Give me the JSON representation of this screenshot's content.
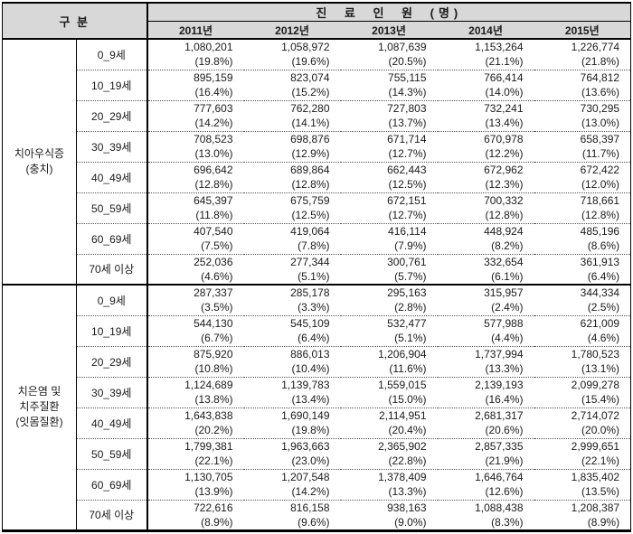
{
  "colors": {
    "header_background": "#d8d8d8",
    "border": "#000000",
    "text": "#1a1a1a"
  },
  "chart_data": {
    "type": "table",
    "category_header": "구  분",
    "main_header": "진 료 인 원 (명)",
    "columns": [
      "2011년",
      "2012년",
      "2013년",
      "2014년",
      "2015년"
    ],
    "sections": [
      {
        "group_lines": [
          "치아우식증",
          "(충치)"
        ],
        "rows": [
          {
            "age": "0_9세",
            "cells": [
              {
                "count": "1,080,201",
                "share": "(19.8%)"
              },
              {
                "count": "1,058,972",
                "share": "(19.6%)"
              },
              {
                "count": "1,087,639",
                "share": "(20.5%)"
              },
              {
                "count": "1,153,264",
                "share": "(21.1%)"
              },
              {
                "count": "1,226,774",
                "share": "(21.8%)"
              }
            ]
          },
          {
            "age": "10_19세",
            "cells": [
              {
                "count": "895,159",
                "share": "(16.4%)"
              },
              {
                "count": "823,074",
                "share": "(15.2%)"
              },
              {
                "count": "755,115",
                "share": "(14.3%)"
              },
              {
                "count": "766,414",
                "share": "(14.0%)"
              },
              {
                "count": "764,812",
                "share": "(13.6%)"
              }
            ]
          },
          {
            "age": "20_29세",
            "cells": [
              {
                "count": "777,603",
                "share": "(14.2%)"
              },
              {
                "count": "762,280",
                "share": "(14.1%)"
              },
              {
                "count": "727,803",
                "share": "(13.7%)"
              },
              {
                "count": "732,241",
                "share": "(13.4%)"
              },
              {
                "count": "730,295",
                "share": "(13.0%)"
              }
            ]
          },
          {
            "age": "30_39세",
            "cells": [
              {
                "count": "708,523",
                "share": "(13.0%)"
              },
              {
                "count": "698,876",
                "share": "(12.9%)"
              },
              {
                "count": "671,714",
                "share": "(12.7%)"
              },
              {
                "count": "670,978",
                "share": "(12.2%)"
              },
              {
                "count": "658,397",
                "share": "(11.7%)"
              }
            ]
          },
          {
            "age": "40_49세",
            "cells": [
              {
                "count": "696,642",
                "share": "(12.8%)"
              },
              {
                "count": "689,864",
                "share": "(12.8%)"
              },
              {
                "count": "662,443",
                "share": "(12.5%)"
              },
              {
                "count": "672,962",
                "share": "(12.3%)"
              },
              {
                "count": "672,422",
                "share": "(12.0%)"
              }
            ]
          },
          {
            "age": "50_59세",
            "cells": [
              {
                "count": "645,397",
                "share": "(11.8%)"
              },
              {
                "count": "675,759",
                "share": "(12.5%)"
              },
              {
                "count": "672,151",
                "share": "(12.7%)"
              },
              {
                "count": "700,332",
                "share": "(12.8%)"
              },
              {
                "count": "718,661",
                "share": "(12.8%)"
              }
            ]
          },
          {
            "age": "60_69세",
            "cells": [
              {
                "count": "407,540",
                "share": "(7.5%)"
              },
              {
                "count": "419,064",
                "share": "(7.8%)"
              },
              {
                "count": "416,114",
                "share": "(7.9%)"
              },
              {
                "count": "448,924",
                "share": "(8.2%)"
              },
              {
                "count": "485,196",
                "share": "(8.6%)"
              }
            ]
          },
          {
            "age": "70세 이상",
            "cells": [
              {
                "count": "252,036",
                "share": "(4.6%)"
              },
              {
                "count": "277,344",
                "share": "(5.1%)"
              },
              {
                "count": "300,761",
                "share": "(5.7%)"
              },
              {
                "count": "332,654",
                "share": "(6.1%)"
              },
              {
                "count": "361,913",
                "share": "(6.4%)"
              }
            ]
          }
        ]
      },
      {
        "group_lines": [
          "치은염 및",
          "치주질환",
          "(잇몸질환)"
        ],
        "rows": [
          {
            "age": "0_9세",
            "cells": [
              {
                "count": "287,337",
                "share": "(3.5%)"
              },
              {
                "count": "285,178",
                "share": "(3.3%)"
              },
              {
                "count": "295,163",
                "share": "(2.8%)"
              },
              {
                "count": "315,957",
                "share": "(2.4%)"
              },
              {
                "count": "344,334",
                "share": "(2.5%)"
              }
            ]
          },
          {
            "age": "10_19세",
            "cells": [
              {
                "count": "544,130",
                "share": "(6.7%)"
              },
              {
                "count": "545,109",
                "share": "(6.4%)"
              },
              {
                "count": "532,477",
                "share": "(5.1%)"
              },
              {
                "count": "577,988",
                "share": "(4.4%)"
              },
              {
                "count": "621,009",
                "share": "(4.6%)"
              }
            ]
          },
          {
            "age": "20_29세",
            "cells": [
              {
                "count": "875,920",
                "share": "(10.8%)"
              },
              {
                "count": "886,013",
                "share": "(10.4%)"
              },
              {
                "count": "1,206,904",
                "share": "(11.6%)"
              },
              {
                "count": "1,737,994",
                "share": "(13.3%)"
              },
              {
                "count": "1,780,523",
                "share": "(13.1%)"
              }
            ]
          },
          {
            "age": "30_39세",
            "cells": [
              {
                "count": "1,124,689",
                "share": "(13.8%)"
              },
              {
                "count": "1,139,783",
                "share": "(13.4%)"
              },
              {
                "count": "1,559,015",
                "share": "(15.0%)"
              },
              {
                "count": "2,139,193",
                "share": "(16.4%)"
              },
              {
                "count": "2,099,278",
                "share": "(15.4%)"
              }
            ]
          },
          {
            "age": "40_49세",
            "cells": [
              {
                "count": "1,643,838",
                "share": "(20.2%)"
              },
              {
                "count": "1,690,149",
                "share": "(19.8%)"
              },
              {
                "count": "2,114,951",
                "share": "(20.4%)"
              },
              {
                "count": "2,681,317",
                "share": "(20.6%)"
              },
              {
                "count": "2,714,072",
                "share": "(20.0%)"
              }
            ]
          },
          {
            "age": "50_59세",
            "cells": [
              {
                "count": "1,799,381",
                "share": "(22.1%)"
              },
              {
                "count": "1,963,663",
                "share": "(23.0%)"
              },
              {
                "count": "2,365,902",
                "share": "(22.8%)"
              },
              {
                "count": "2,857,335",
                "share": "(21.9%)"
              },
              {
                "count": "2,999,651",
                "share": "(22.1%)"
              }
            ]
          },
          {
            "age": "60_69세",
            "cells": [
              {
                "count": "1,130,705",
                "share": "(13.9%)"
              },
              {
                "count": "1,207,548",
                "share": "(14.2%)"
              },
              {
                "count": "1,378,409",
                "share": "(13.3%)"
              },
              {
                "count": "1,646,764",
                "share": "(12.6%)"
              },
              {
                "count": "1,835,402",
                "share": "(13.5%)"
              }
            ]
          },
          {
            "age": "70세 이상",
            "cells": [
              {
                "count": "722,616",
                "share": "(8.9%)"
              },
              {
                "count": "816,158",
                "share": "(9.6%)"
              },
              {
                "count": "938,163",
                "share": "(9.0%)"
              },
              {
                "count": "1,088,438",
                "share": "(8.3%)"
              },
              {
                "count": "1,208,387",
                "share": "(8.9%)"
              }
            ]
          }
        ]
      }
    ]
  }
}
